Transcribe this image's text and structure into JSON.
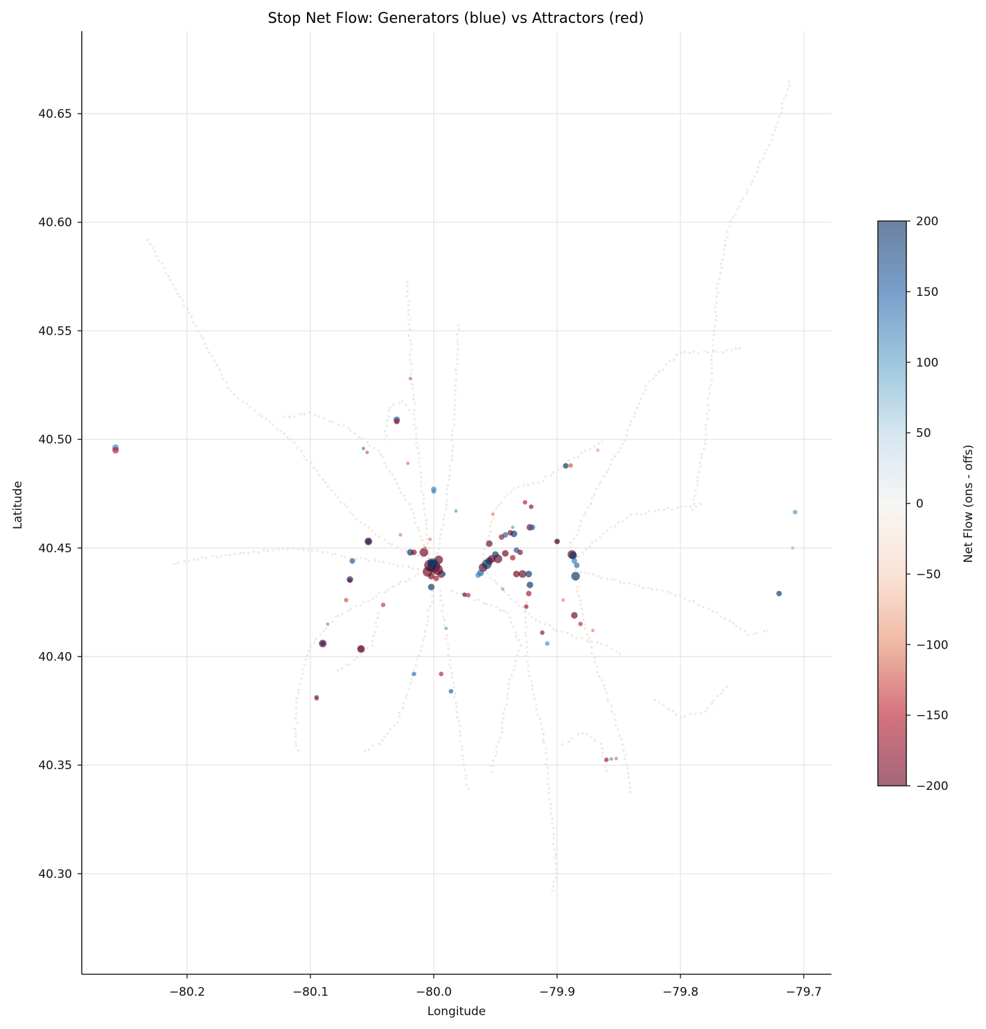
{
  "chart_data": {
    "type": "scatter",
    "title": "Stop Net Flow: Generators (blue) vs Attractors (red)",
    "xlabel": "Longitude",
    "ylabel": "Latitude",
    "xlim": [
      -80.285,
      -79.677
    ],
    "ylim": [
      40.2535,
      40.688
    ],
    "x_ticks": [
      -80.2,
      -80.1,
      -80.0,
      -79.9,
      -79.8,
      -79.7
    ],
    "x_tick_labels": [
      "−80.2",
      "−80.1",
      "−80.0",
      "−79.9",
      "−79.8",
      "−79.7"
    ],
    "y_ticks": [
      40.3,
      40.35,
      40.4,
      40.45,
      40.5,
      40.55,
      40.6,
      40.65
    ],
    "y_tick_labels": [
      "40.30",
      "40.35",
      "40.40",
      "40.45",
      "40.50",
      "40.55",
      "40.60",
      "40.65"
    ],
    "grid": true,
    "colorbar": {
      "label": "Net Flow (ons - offs)",
      "vmin": -200,
      "vmax": 200,
      "ticks": [
        200,
        150,
        100,
        50,
        0,
        -50,
        -100,
        -150,
        -200
      ],
      "tick_labels": [
        "200",
        "150",
        "100",
        "50",
        "0",
        "−50",
        "−100",
        "−150",
        "−200"
      ],
      "colormap": "RdBu",
      "colors": {
        "200": "#6e86a3",
        "150": "#7aa3cc",
        "100": "#9cc8e0",
        "50": "#d6e7f1",
        "0": "#f7f5f4",
        "-50": "#fbe3d6",
        "-100": "#f0b9a4",
        "-150": "#d3717c",
        "-200": "#a4687c"
      }
    },
    "encoding": "color = net flow; marker size ~ total volume; alpha ~0.6",
    "points": [
      {
        "lon": -80.258,
        "lat": 40.4962,
        "net": 120,
        "size": 5
      },
      {
        "lon": -80.258,
        "lat": 40.495,
        "net": -150,
        "size": 5
      },
      {
        "lon": -80.03,
        "lat": 40.509,
        "net": 180,
        "size": 5
      },
      {
        "lon": -80.03,
        "lat": 40.5082,
        "net": -160,
        "size": 4
      },
      {
        "lon": -80.053,
        "lat": 40.453,
        "net": -220,
        "size": 6
      },
      {
        "lon": -80.053,
        "lat": 40.453,
        "net": 220,
        "size": 4
      },
      {
        "lon": -80.066,
        "lat": 40.444,
        "net": 170,
        "size": 4
      },
      {
        "lon": -80.068,
        "lat": 40.4355,
        "net": 220,
        "size": 5
      },
      {
        "lon": -80.068,
        "lat": 40.435,
        "net": -180,
        "size": 3
      },
      {
        "lon": -80.09,
        "lat": 40.406,
        "net": -220,
        "size": 6
      },
      {
        "lon": -80.09,
        "lat": 40.406,
        "net": 220,
        "size": 3
      },
      {
        "lon": -80.059,
        "lat": 40.4035,
        "net": 160,
        "size": 5
      },
      {
        "lon": -80.059,
        "lat": 40.4035,
        "net": -180,
        "size": 6
      },
      {
        "lon": -80.095,
        "lat": 40.3813,
        "net": 140,
        "size": 3
      },
      {
        "lon": -80.095,
        "lat": 40.3808,
        "net": -150,
        "size": 3
      },
      {
        "lon": -80.071,
        "lat": 40.426,
        "net": -110,
        "size": 3
      },
      {
        "lon": -80.041,
        "lat": 40.4238,
        "net": -130,
        "size": 3
      },
      {
        "lon": -80.019,
        "lat": 40.448,
        "net": 230,
        "size": 5
      },
      {
        "lon": -80.016,
        "lat": 40.448,
        "net": -180,
        "size": 4
      },
      {
        "lon": -80.008,
        "lat": 40.448,
        "net": -220,
        "size": 7
      },
      {
        "lon": -80.003,
        "lat": 40.442,
        "net": -230,
        "size": 10
      },
      {
        "lon": -80.0,
        "lat": 40.4415,
        "net": 240,
        "size": 11
      },
      {
        "lon": -79.997,
        "lat": 40.44,
        "net": -230,
        "size": 9
      },
      {
        "lon": -80.005,
        "lat": 40.439,
        "net": -220,
        "size": 8
      },
      {
        "lon": -79.996,
        "lat": 40.4445,
        "net": -200,
        "size": 7
      },
      {
        "lon": -80.001,
        "lat": 40.443,
        "net": 220,
        "size": 8
      },
      {
        "lon": -79.994,
        "lat": 40.438,
        "net": -210,
        "size": 6
      },
      {
        "lon": -80.002,
        "lat": 40.437,
        "net": -190,
        "size": 5
      },
      {
        "lon": -79.998,
        "lat": 40.436,
        "net": -170,
        "size": 4
      },
      {
        "lon": -80.002,
        "lat": 40.432,
        "net": 230,
        "size": 5
      },
      {
        "lon": -79.992,
        "lat": 40.438,
        "net": 140,
        "size": 3
      },
      {
        "lon": -79.975,
        "lat": 40.4285,
        "net": -200,
        "size": 3
      },
      {
        "lon": -79.972,
        "lat": 40.4283,
        "net": -140,
        "size": 3
      },
      {
        "lon": -80.0,
        "lat": 40.477,
        "net": 120,
        "size": 4
      },
      {
        "lon": -80.0,
        "lat": 40.476,
        "net": 110,
        "size": 3
      },
      {
        "lon": -79.96,
        "lat": 40.441,
        "net": -200,
        "size": 7
      },
      {
        "lon": -79.957,
        "lat": 40.4425,
        "net": 230,
        "size": 8
      },
      {
        "lon": -79.955,
        "lat": 40.444,
        "net": 200,
        "size": 6
      },
      {
        "lon": -79.953,
        "lat": 40.445,
        "net": -190,
        "size": 6
      },
      {
        "lon": -79.962,
        "lat": 40.4385,
        "net": 160,
        "size": 5
      },
      {
        "lon": -79.964,
        "lat": 40.4375,
        "net": 120,
        "size": 4
      },
      {
        "lon": -79.948,
        "lat": 40.445,
        "net": -220,
        "size": 7
      },
      {
        "lon": -79.95,
        "lat": 40.447,
        "net": 200,
        "size": 5
      },
      {
        "lon": -79.955,
        "lat": 40.452,
        "net": -200,
        "size": 5
      },
      {
        "lon": -79.945,
        "lat": 40.455,
        "net": -170,
        "size": 4
      },
      {
        "lon": -79.942,
        "lat": 40.456,
        "net": 160,
        "size": 4
      },
      {
        "lon": -79.938,
        "lat": 40.457,
        "net": -180,
        "size": 4
      },
      {
        "lon": -79.935,
        "lat": 40.4565,
        "net": 230,
        "size": 5
      },
      {
        "lon": -79.942,
        "lat": 40.4475,
        "net": -200,
        "size": 5
      },
      {
        "lon": -79.936,
        "lat": 40.4455,
        "net": -160,
        "size": 4
      },
      {
        "lon": -79.933,
        "lat": 40.449,
        "net": 170,
        "size": 4
      },
      {
        "lon": -79.93,
        "lat": 40.448,
        "net": -190,
        "size": 4
      },
      {
        "lon": -79.933,
        "lat": 40.438,
        "net": -200,
        "size": 5
      },
      {
        "lon": -79.928,
        "lat": 40.438,
        "net": -220,
        "size": 6
      },
      {
        "lon": -79.923,
        "lat": 40.438,
        "net": 220,
        "size": 5
      },
      {
        "lon": -79.922,
        "lat": 40.433,
        "net": 230,
        "size": 5
      },
      {
        "lon": -79.923,
        "lat": 40.429,
        "net": -160,
        "size": 4
      },
      {
        "lon": -79.925,
        "lat": 40.423,
        "net": -170,
        "size": 3
      },
      {
        "lon": -79.922,
        "lat": 40.4595,
        "net": -200,
        "size": 5
      },
      {
        "lon": -79.92,
        "lat": 40.4595,
        "net": 150,
        "size": 4
      },
      {
        "lon": -79.926,
        "lat": 40.471,
        "net": -150,
        "size": 3
      },
      {
        "lon": -79.921,
        "lat": 40.469,
        "net": -180,
        "size": 3
      },
      {
        "lon": -79.912,
        "lat": 40.411,
        "net": -180,
        "size": 3
      },
      {
        "lon": -79.908,
        "lat": 40.406,
        "net": 110,
        "size": 3
      },
      {
        "lon": -79.893,
        "lat": 40.4878,
        "net": 230,
        "size": 4
      },
      {
        "lon": -79.889,
        "lat": 40.488,
        "net": -110,
        "size": 3
      },
      {
        "lon": -79.9,
        "lat": 40.453,
        "net": 200,
        "size": 4
      },
      {
        "lon": -79.9,
        "lat": 40.453,
        "net": -160,
        "size": 3
      },
      {
        "lon": -79.888,
        "lat": 40.447,
        "net": -230,
        "size": 7
      },
      {
        "lon": -79.887,
        "lat": 40.4465,
        "net": 220,
        "size": 6
      },
      {
        "lon": -79.886,
        "lat": 40.444,
        "net": 130,
        "size": 4
      },
      {
        "lon": -79.884,
        "lat": 40.442,
        "net": 150,
        "size": 4
      },
      {
        "lon": -79.885,
        "lat": 40.437,
        "net": 240,
        "size": 7
      },
      {
        "lon": -79.886,
        "lat": 40.419,
        "net": -220,
        "size": 5
      },
      {
        "lon": -79.881,
        "lat": 40.415,
        "net": -140,
        "size": 3
      },
      {
        "lon": -79.72,
        "lat": 40.429,
        "net": 240,
        "size": 4
      },
      {
        "lon": -79.707,
        "lat": 40.4665,
        "net": 100,
        "size": 3
      },
      {
        "lon": -79.709,
        "lat": 40.45,
        "net": 60,
        "size": 2
      },
      {
        "lon": -79.986,
        "lat": 40.384,
        "net": 160,
        "size": 3
      },
      {
        "lon": -79.994,
        "lat": 40.392,
        "net": -150,
        "size": 3
      },
      {
        "lon": -80.016,
        "lat": 40.392,
        "net": 140,
        "size": 3
      },
      {
        "lon": -79.99,
        "lat": 40.413,
        "net": 80,
        "size": 2
      },
      {
        "lon": -79.86,
        "lat": 40.3525,
        "net": -160,
        "size": 3
      },
      {
        "lon": -79.856,
        "lat": 40.3528,
        "net": 100,
        "size": 2
      },
      {
        "lon": -79.852,
        "lat": 40.353,
        "net": -90,
        "size": 2
      },
      {
        "lon": -80.057,
        "lat": 40.4958,
        "net": 120,
        "size": 2
      },
      {
        "lon": -80.054,
        "lat": 40.494,
        "net": -110,
        "size": 2
      },
      {
        "lon": -80.027,
        "lat": 40.456,
        "net": -90,
        "size": 2
      },
      {
        "lon": -80.021,
        "lat": 40.489,
        "net": -90,
        "size": 2
      },
      {
        "lon": -80.019,
        "lat": 40.528,
        "net": -100,
        "size": 2
      },
      {
        "lon": -79.982,
        "lat": 40.467,
        "net": 90,
        "size": 2
      },
      {
        "lon": -79.952,
        "lat": 40.4655,
        "net": -80,
        "size": 2
      },
      {
        "lon": -79.936,
        "lat": 40.4595,
        "net": 90,
        "size": 2
      },
      {
        "lon": -79.895,
        "lat": 40.426,
        "net": -80,
        "size": 2
      },
      {
        "lon": -79.867,
        "lat": 40.495,
        "net": -60,
        "size": 2
      },
      {
        "lon": -79.871,
        "lat": 40.412,
        "net": -80,
        "size": 2
      },
      {
        "lon": -79.944,
        "lat": 40.431,
        "net": 80,
        "size": 2
      },
      {
        "lon": -80.007,
        "lat": 40.45,
        "net": -90,
        "size": 2
      },
      {
        "lon": -80.003,
        "lat": 40.454,
        "net": -80,
        "size": 2
      },
      {
        "lon": -80.086,
        "lat": 40.415,
        "net": -90,
        "size": 2
      }
    ],
    "background_routes_note": "thousands of small faint near-zero (grey/very light) stop markers trace transit routes across the region",
    "route_polylines": [
      [
        [
          -80.232,
          40.592
        ],
        [
          -80.215,
          40.575
        ],
        [
          -80.198,
          40.558
        ],
        [
          -80.18,
          40.538
        ],
        [
          -80.165,
          40.522
        ],
        [
          -80.142,
          40.512
        ],
        [
          -80.115,
          40.5
        ],
        [
          -80.085,
          40.478
        ],
        [
          -80.06,
          40.462
        ],
        [
          -80.03,
          40.45
        ],
        [
          -80.005,
          40.445
        ]
      ],
      [
        [
          -80.005,
          40.445
        ],
        [
          -80.018,
          40.468
        ],
        [
          -80.03,
          40.48
        ],
        [
          -80.045,
          40.495
        ],
        [
          -80.07,
          40.505
        ],
        [
          -80.1,
          40.512
        ],
        [
          -80.125,
          40.51
        ]
      ],
      [
        [
          -80.003,
          40.443
        ],
        [
          -80.008,
          40.47
        ],
        [
          -80.014,
          40.5
        ],
        [
          -80.018,
          40.53
        ],
        [
          -80.02,
          40.555
        ],
        [
          -80.022,
          40.575
        ]
      ],
      [
        [
          -80.04,
          40.5
        ],
        [
          -80.036,
          40.515
        ],
        [
          -80.025,
          40.518
        ],
        [
          -80.018,
          40.512
        ]
      ],
      [
        [
          -79.997,
          40.445
        ],
        [
          -79.99,
          40.47
        ],
        [
          -79.985,
          40.495
        ],
        [
          -79.982,
          40.525
        ],
        [
          -79.98,
          40.555
        ]
      ],
      [
        [
          -79.96,
          40.445
        ],
        [
          -79.95,
          40.468
        ],
        [
          -79.935,
          40.478
        ],
        [
          -79.915,
          40.48
        ],
        [
          -79.89,
          40.49
        ],
        [
          -79.86,
          40.5
        ]
      ],
      [
        [
          -79.89,
          40.45
        ],
        [
          -79.87,
          40.475
        ],
        [
          -79.845,
          40.5
        ],
        [
          -79.828,
          40.525
        ],
        [
          -79.8,
          40.54
        ],
        [
          -79.77,
          40.54
        ],
        [
          -79.748,
          40.542
        ]
      ],
      [
        [
          -79.885,
          40.445
        ],
        [
          -79.86,
          40.458
        ],
        [
          -79.84,
          40.465
        ],
        [
          -79.81,
          40.468
        ],
        [
          -79.78,
          40.47
        ]
      ],
      [
        [
          -79.79,
          40.468
        ],
        [
          -79.78,
          40.5
        ],
        [
          -79.775,
          40.53
        ],
        [
          -79.77,
          40.57
        ],
        [
          -79.76,
          40.6
        ],
        [
          -79.745,
          40.615
        ],
        [
          -79.725,
          40.64
        ],
        [
          -79.71,
          40.667
        ]
      ],
      [
        [
          -79.885,
          40.44
        ],
        [
          -79.86,
          40.436
        ],
        [
          -79.83,
          40.432
        ],
        [
          -79.8,
          40.428
        ],
        [
          -79.77,
          40.42
        ],
        [
          -79.745,
          40.41
        ],
        [
          -79.725,
          40.412
        ]
      ],
      [
        [
          -79.885,
          40.437
        ],
        [
          -79.878,
          40.415
        ],
        [
          -79.868,
          40.395
        ],
        [
          -79.855,
          40.375
        ],
        [
          -79.845,
          40.355
        ],
        [
          -79.84,
          40.335
        ]
      ],
      [
        [
          -79.925,
          40.425
        ],
        [
          -79.925,
          40.4
        ],
        [
          -79.918,
          40.38
        ],
        [
          -79.91,
          40.36
        ],
        [
          -79.905,
          40.33
        ],
        [
          -79.9,
          40.3
        ],
        [
          -79.905,
          40.29
        ]
      ],
      [
        [
          -79.995,
          40.43
        ],
        [
          -79.99,
          40.41
        ],
        [
          -79.985,
          40.39
        ],
        [
          -79.98,
          40.37
        ],
        [
          -79.975,
          40.35
        ],
        [
          -79.972,
          40.337
        ]
      ],
      [
        [
          -80.0,
          40.43
        ],
        [
          -80.01,
          40.405
        ],
        [
          -80.02,
          40.385
        ],
        [
          -80.03,
          40.37
        ],
        [
          -80.045,
          40.36
        ],
        [
          -80.06,
          40.355
        ]
      ],
      [
        [
          -80.005,
          40.44
        ],
        [
          -80.04,
          40.43
        ],
        [
          -80.08,
          40.418
        ],
        [
          -80.1,
          40.405
        ],
        [
          -80.11,
          40.385
        ],
        [
          -80.112,
          40.365
        ],
        [
          -80.11,
          40.355
        ]
      ],
      [
        [
          -80.005,
          40.44
        ],
        [
          -80.06,
          40.445
        ],
        [
          -80.11,
          40.45
        ],
        [
          -80.15,
          40.448
        ],
        [
          -80.195,
          40.445
        ],
        [
          -80.215,
          40.442
        ]
      ],
      [
        [
          -79.96,
          40.44
        ],
        [
          -79.94,
          40.428
        ],
        [
          -79.92,
          40.418
        ],
        [
          -79.9,
          40.412
        ],
        [
          -79.88,
          40.408
        ],
        [
          -79.86,
          40.405
        ],
        [
          -79.845,
          40.4
        ]
      ],
      [
        [
          -79.985,
          40.43
        ],
        [
          -79.96,
          40.425
        ],
        [
          -79.94,
          40.42
        ],
        [
          -79.93,
          40.405
        ],
        [
          -79.94,
          40.385
        ],
        [
          -79.945,
          40.365
        ],
        [
          -79.955,
          40.345
        ]
      ],
      [
        [
          -79.895,
          40.36
        ],
        [
          -79.88,
          40.365
        ],
        [
          -79.865,
          40.36
        ],
        [
          -79.86,
          40.345
        ]
      ],
      [
        [
          -79.82,
          40.38
        ],
        [
          -79.8,
          40.372
        ],
        [
          -79.78,
          40.375
        ],
        [
          -79.76,
          40.388
        ]
      ],
      [
        [
          -80.045,
          40.42
        ],
        [
          -80.05,
          40.405
        ],
        [
          -80.065,
          40.398
        ],
        [
          -80.08,
          40.392
        ]
      ]
    ]
  }
}
